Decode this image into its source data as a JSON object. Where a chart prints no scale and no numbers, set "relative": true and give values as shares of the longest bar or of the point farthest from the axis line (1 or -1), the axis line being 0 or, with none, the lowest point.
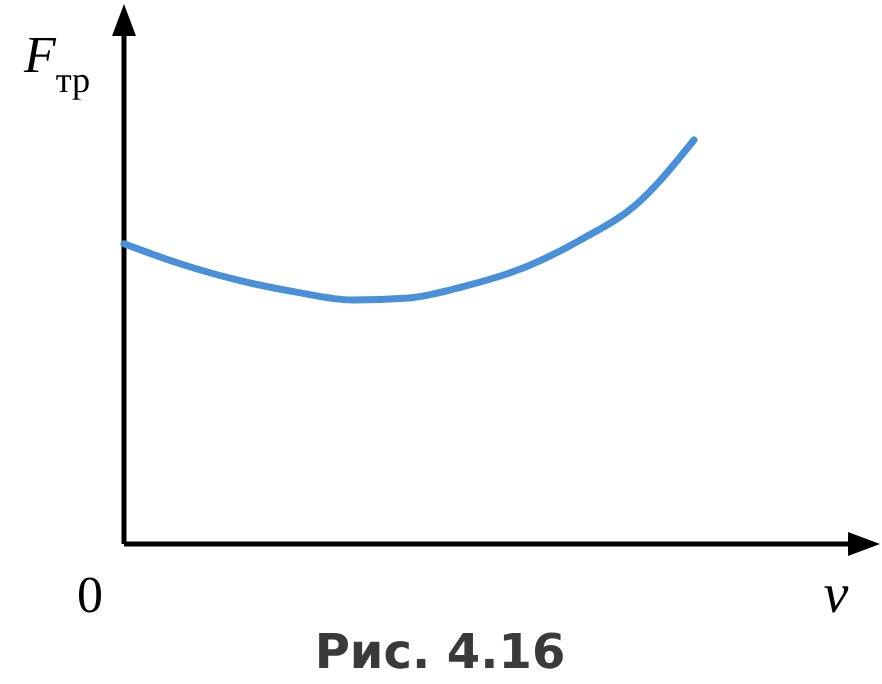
{
  "chart_data": {
    "type": "line",
    "relative": true,
    "xlabel": "v",
    "ylabel": "F$_{тр}$",
    "categories": [
      null,
      null,
      null,
      null,
      null,
      null,
      null,
      null,
      null,
      null,
      null
    ],
    "series": [
      {
        "color": "#4a90d9",
        "values": [
          0.743,
          0.693,
          0.653,
          0.624,
          0.604,
          0.609,
          0.639,
          0.683,
          0.752,
          0.842,
          1
        ]
      }
    ],
    "annotations": [
      "0",
      "Рис. 4.16"
    ],
    "marker": "none",
    "line_style": "solid"
  }
}
